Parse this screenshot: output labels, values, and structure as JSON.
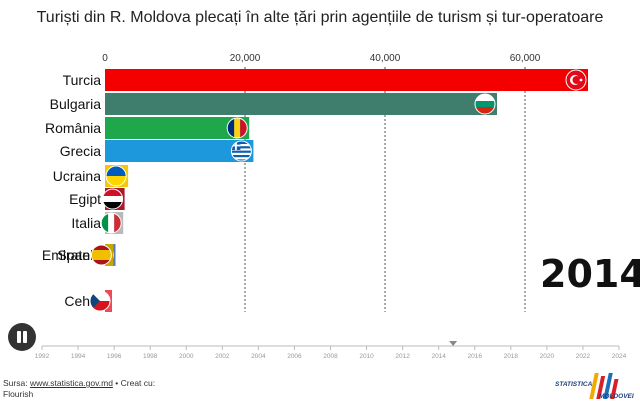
{
  "title": "Turiști din R. Moldova plecați în alte țări prin agențiile de turism și tur-operatoare",
  "year_display": "2014",
  "controls": {
    "pause_icon": "pause-icon"
  },
  "footer": {
    "prefix": "Sursa: ",
    "link_text": "www.statistica.gov.md",
    "suffix": " • Creat cu:",
    "line2": "Flourish"
  },
  "logo": {
    "line1": "STATISTICA",
    "line2": "MOLDOVEI"
  },
  "chart_data": {
    "type": "bar",
    "orientation": "horizontal",
    "title": "Turiști din R. Moldova plecați în alte țări prin agențiile de turism și tur-operatoare",
    "xlabel": "",
    "ylabel": "",
    "xlim": [
      0,
      70000
    ],
    "x_ticks": [
      0,
      20000,
      40000,
      60000
    ],
    "x_tick_labels": [
      "0",
      "20,000",
      "40,000",
      "60,000"
    ],
    "categories": [
      "Turcia",
      "Bulgaria",
      "România",
      "Grecia",
      "Ucraina",
      "Egipt",
      "Italia",
      "Emiratele",
      "Spania",
      "Cehia"
    ],
    "values": [
      69000,
      56000,
      20600,
      21200,
      3300,
      2800,
      2600,
      1500,
      1200,
      1000
    ],
    "colors": [
      "#f40000",
      "#3f7d6c",
      "#1ea84b",
      "#1d98dc",
      "#f2c80b",
      "#a8192a",
      "#b9b9b9",
      "#5a7ab5",
      "#c8a600",
      "#eb4a58"
    ],
    "flag_icons": [
      "turkey-flag-icon",
      "bulgaria-flag-icon",
      "romania-flag-icon",
      "greece-flag-icon",
      "ukraine-flag-icon",
      "egypt-flag-icon",
      "italy-flag-icon",
      "uae-flag-icon",
      "spain-flag-icon",
      "czechia-flag-icon"
    ],
    "grid": true,
    "timeline": {
      "start": 1992,
      "end": 2024,
      "ticks": [
        "1992",
        "1994",
        "1996",
        "1998",
        "2000",
        "2002",
        "2004",
        "2006",
        "2008",
        "2010",
        "2012",
        "2014",
        "2016",
        "2018",
        "2020",
        "2022",
        "2024"
      ],
      "current": 2014.8
    }
  }
}
